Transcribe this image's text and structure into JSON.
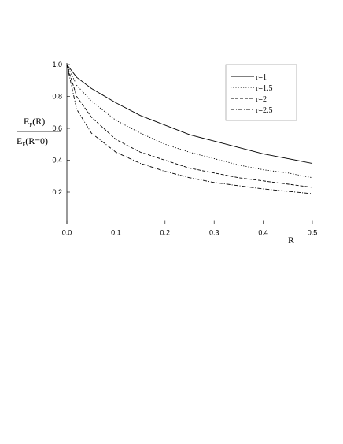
{
  "chart_data": {
    "type": "line",
    "ylabel": {
      "numerator": {
        "base": "E",
        "sub": "F",
        "rest": "(R)"
      },
      "denominator": {
        "base": "E",
        "sub": "F",
        "rest": "(R=0)"
      }
    },
    "xlabel": "R",
    "x": [
      0,
      0.02,
      0.05,
      0.1,
      0.15,
      0.2,
      0.25,
      0.3,
      0.35,
      0.4,
      0.45,
      0.5
    ],
    "series": [
      {
        "name": "r=1",
        "color": "#000000",
        "dash": "solid",
        "values": [
          1.0,
          0.92,
          0.85,
          0.76,
          0.68,
          0.62,
          0.56,
          0.52,
          0.48,
          0.44,
          0.41,
          0.38
        ]
      },
      {
        "name": "r=1.5",
        "color": "#000000",
        "dash": "dotted",
        "values": [
          1.0,
          0.87,
          0.77,
          0.65,
          0.57,
          0.5,
          0.45,
          0.41,
          0.37,
          0.34,
          0.32,
          0.29
        ]
      },
      {
        "name": "r=2",
        "color": "#000000",
        "dash": "dashed",
        "values": [
          1.0,
          0.8,
          0.67,
          0.53,
          0.45,
          0.4,
          0.35,
          0.32,
          0.29,
          0.27,
          0.25,
          0.23
        ]
      },
      {
        "name": "r=2.5",
        "color": "#000000",
        "dash": "dashdot",
        "values": [
          1.0,
          0.72,
          0.57,
          0.45,
          0.38,
          0.33,
          0.29,
          0.26,
          0.24,
          0.22,
          0.205,
          0.19
        ]
      }
    ],
    "xlim": [
      0,
      0.5
    ],
    "ylim": [
      0,
      1.0
    ],
    "xticks": [
      {
        "value": 0,
        "label": "0.0"
      },
      0.1,
      0.2,
      0.3,
      0.4,
      0.5
    ],
    "yticks": [
      0.2,
      0.4,
      0.6,
      0.8,
      {
        "value": 1.0,
        "label": "1.0"
      }
    ],
    "grid": false,
    "legend": "upper right"
  }
}
